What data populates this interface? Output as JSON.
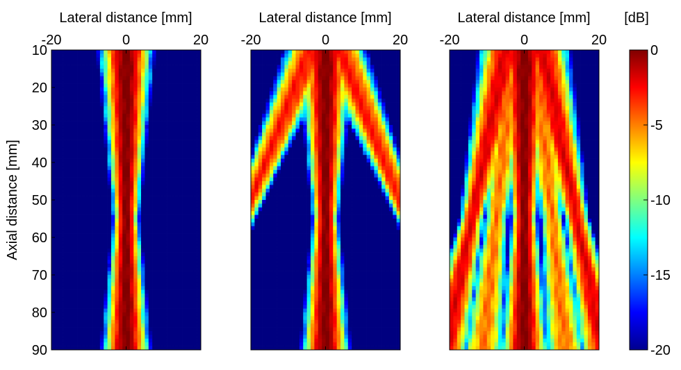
{
  "chart_data": {
    "type": "heatmap",
    "colormap": "jet",
    "clim": [
      -20,
      0
    ],
    "panels": [
      {
        "xlabel": "Lateral distance [mm]",
        "ylabel": "Axial distance [mm]",
        "xlim": [
          -20,
          20
        ],
        "ylim": [
          10,
          90
        ],
        "xticks": [
          "-20",
          "0",
          "20"
        ],
        "yticks": [
          "10",
          "20",
          "30",
          "40",
          "50",
          "60",
          "70",
          "80",
          "90"
        ],
        "beams": [
          {
            "x_at_10mm": 0,
            "x_at_90mm": 0,
            "peak_db": 0
          }
        ]
      },
      {
        "xlabel": "Lateral distance [mm]",
        "ylabel": "",
        "xlim": [
          -20,
          20
        ],
        "ylim": [
          10,
          90
        ],
        "xticks": [
          "-20",
          "0",
          "20"
        ],
        "yticks": [],
        "beams": [
          {
            "x_at_10mm": 0,
            "x_at_90mm": 0,
            "peak_db": 0
          },
          {
            "x_at_10mm": -4,
            "x_at_90mm": -36,
            "peak_db": -3
          },
          {
            "x_at_10mm": 4,
            "x_at_90mm": 36,
            "peak_db": -3
          }
        ]
      },
      {
        "xlabel": "Lateral distance [mm]",
        "ylabel": "",
        "xlim": [
          -20,
          20
        ],
        "ylim": [
          10,
          90
        ],
        "xticks": [
          "-20",
          "0",
          "20"
        ],
        "yticks": [],
        "beams": [
          {
            "x_at_10mm": 0,
            "x_at_90mm": 0,
            "peak_db": 0
          },
          {
            "x_at_10mm": -3,
            "x_at_90mm": -11,
            "peak_db": -5
          },
          {
            "x_at_10mm": 3,
            "x_at_90mm": 11,
            "peak_db": -5
          },
          {
            "x_at_10mm": -5,
            "x_at_90mm": -21,
            "peak_db": -2
          },
          {
            "x_at_10mm": 5,
            "x_at_90mm": 21,
            "peak_db": -2
          }
        ]
      }
    ],
    "colorbar": {
      "label": "[dB]",
      "ticks": [
        "0",
        "-5",
        "-10",
        "-15",
        "-20"
      ],
      "tick_values": [
        0,
        -5,
        -10,
        -15,
        -20
      ]
    }
  }
}
